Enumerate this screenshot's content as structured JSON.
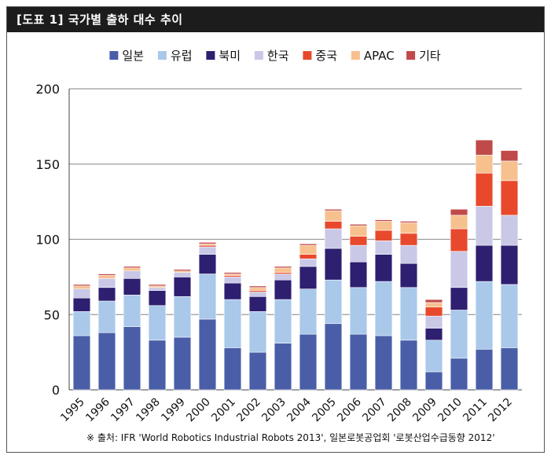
{
  "title": "[도표 1] 국가별 출하 대수 추이",
  "source": "※ 출처: IFR 'World Robotics Industrial Robots 2013', 일본로봇공업회 '로봇산업수급동향 2012'",
  "chart_data": {
    "type": "bar",
    "stacked": true,
    "categories": [
      "1995",
      "1996",
      "1997",
      "1998",
      "1999",
      "2000",
      "2001",
      "2002",
      "2003",
      "2004",
      "2005",
      "2006",
      "2007",
      "2008",
      "2009",
      "2010",
      "2011",
      "2012"
    ],
    "ylim": [
      0,
      200
    ],
    "yticks": [
      0,
      50,
      100,
      150,
      200
    ],
    "grid": true,
    "legend_position": "top",
    "series": [
      {
        "name": "일본",
        "color": "#4a5ea8",
        "values": [
          36,
          38,
          42,
          33,
          35,
          47,
          28,
          25,
          31,
          37,
          44,
          37,
          36,
          33,
          12,
          21,
          27,
          28
        ]
      },
      {
        "name": "유럽",
        "color": "#a9c8ea",
        "values": [
          16,
          21,
          21,
          23,
          27,
          30,
          32,
          27,
          29,
          30,
          29,
          31,
          36,
          35,
          21,
          32,
          45,
          42
        ]
      },
      {
        "name": "북미",
        "color": "#2e1f70",
        "values": [
          9,
          9,
          11,
          10,
          13,
          13,
          11,
          10,
          13,
          15,
          21,
          17,
          18,
          16,
          8,
          15,
          24,
          26
        ]
      },
      {
        "name": "한국",
        "color": "#c9c8e6",
        "values": [
          6,
          6,
          5,
          2,
          3,
          5,
          4,
          3,
          4,
          5,
          13,
          11,
          9,
          12,
          8,
          24,
          26,
          20
        ]
      },
      {
        "name": "중국",
        "color": "#e8492c",
        "values": [
          0,
          0,
          0,
          0,
          0,
          1,
          1,
          1,
          1,
          3,
          5,
          6,
          7,
          8,
          6,
          15,
          22,
          23
        ]
      },
      {
        "name": "APAC",
        "color": "#f7c08f",
        "values": [
          2,
          2,
          2,
          1,
          1,
          1,
          1,
          2,
          3,
          6,
          7,
          7,
          6,
          7,
          3,
          9,
          12,
          13
        ]
      },
      {
        "name": "기타",
        "color": "#c0494a",
        "values": [
          1,
          1,
          1,
          1,
          1,
          1,
          1,
          1,
          1,
          1,
          1,
          1,
          1,
          1,
          2,
          4,
          10,
          7
        ]
      }
    ]
  }
}
